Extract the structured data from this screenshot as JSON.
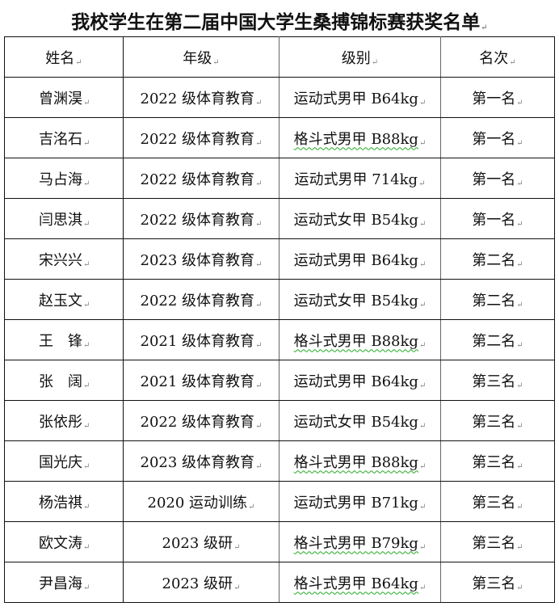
{
  "title": "我校学生在第二届中国大学生桑搏锦标赛获奖名单",
  "table": {
    "headers": [
      "姓名",
      "年级",
      "级别",
      "名次"
    ],
    "rows": [
      [
        "曾渊淏",
        "2022 级体育教育",
        "运动式男甲 B64kg",
        "第一名"
      ],
      [
        "吉洺石",
        "2022 级体育教育",
        "格斗式男甲 B88kg",
        "第一名"
      ],
      [
        "马占海",
        "2022 级体育教育",
        "运动式男甲 714kg",
        "第一名"
      ],
      [
        "闫思淇",
        "2022 级体育教育",
        "运动式女甲 B54kg",
        "第一名"
      ],
      [
        "宋兴兴",
        "2023 级体育教育",
        "运动式男甲 B64kg",
        "第二名"
      ],
      [
        "赵玉文",
        "2022 级体育教育",
        "运动式女甲 B54kg",
        "第二名"
      ],
      [
        "王　锋",
        "2021 级体育教育",
        "格斗式男甲 B88kg",
        "第二名"
      ],
      [
        "张　阔",
        "2021 级体育教育",
        "运动式男甲 B64kg",
        "第三名"
      ],
      [
        "张依彤",
        "2022 级体育教育",
        "运动式女甲 B54kg",
        "第三名"
      ],
      [
        "国光庆",
        "2023 级体育教育",
        "格斗式男甲 B88kg",
        "第三名"
      ],
      [
        "杨浩祺",
        "2020 运动训练",
        "运动式男甲 B71kg",
        "第三名"
      ],
      [
        "欧文涛",
        "2023 级研",
        "格斗式男甲 B79kg",
        "第三名"
      ],
      [
        "尹昌海",
        "2023 级研",
        "格斗式男甲 B64kg",
        "第三名"
      ]
    ]
  }
}
